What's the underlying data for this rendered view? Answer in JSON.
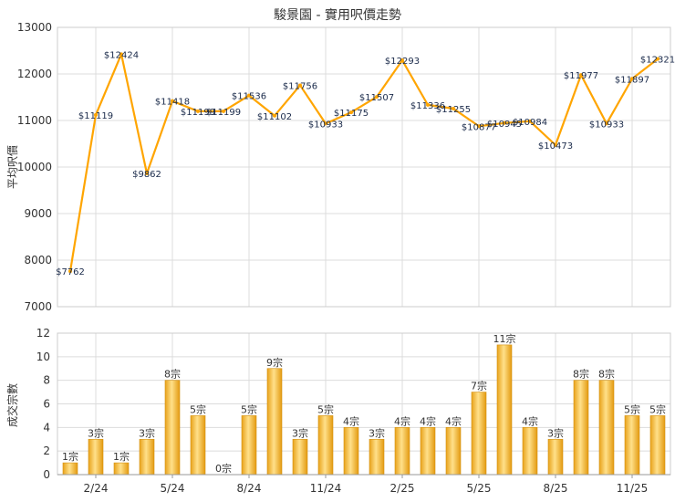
{
  "chart_data": [
    {
      "type": "line",
      "title": "駿景園 - 實用呎價走勢",
      "ylabel": "平均呎價",
      "ylim": [
        7000,
        13000
      ],
      "yticks": [
        7000,
        8000,
        9000,
        10000,
        11000,
        12000,
        13000
      ],
      "xticks": [
        "2/24",
        "5/24",
        "8/24",
        "11/24",
        "2/25",
        "5/25",
        "8/25",
        "11/25"
      ],
      "grid": true,
      "color": "#FFA500",
      "values": [
        7762,
        11119,
        12424,
        9862,
        11418,
        11199,
        11199,
        11536,
        11102,
        11756,
        10933,
        11175,
        11507,
        12293,
        11336,
        11255,
        10877,
        10945,
        10984,
        10473,
        11977,
        10933,
        11897,
        12321
      ],
      "labels": [
        "$7762",
        "$11119",
        "$12424",
        "$9862",
        "$11418",
        "$11199",
        "$11199",
        "$11536",
        "$11102",
        "$11756",
        "$10933",
        "$11175",
        "$11507",
        "$12293",
        "$11336",
        "$11255",
        "$10877",
        "$10945",
        "$10984",
        "$10473",
        "$11977",
        "$10933",
        "$11897",
        "$12321"
      ]
    },
    {
      "type": "bar",
      "ylabel": "成交宗數",
      "ylim": [
        0,
        12
      ],
      "yticks": [
        0,
        2,
        4,
        6,
        8,
        10,
        12
      ],
      "xticks": [
        "2/24",
        "5/24",
        "8/24",
        "11/24",
        "2/25",
        "5/25",
        "8/25",
        "11/25"
      ],
      "grid": true,
      "color": "#F5A623",
      "values": [
        1,
        3,
        1,
        3,
        8,
        5,
        0,
        5,
        9,
        3,
        5,
        4,
        3,
        4,
        4,
        4,
        7,
        11,
        4,
        3,
        8,
        8,
        5,
        5
      ],
      "labels": [
        "1宗",
        "3宗",
        "1宗",
        "3宗",
        "8宗",
        "5宗",
        "0宗",
        "5宗",
        "9宗",
        "3宗",
        "5宗",
        "4宗",
        "3宗",
        "4宗",
        "4宗",
        "4宗",
        "7宗",
        "11宗",
        "4宗",
        "3宗",
        "8宗",
        "8宗",
        "5宗",
        "5宗"
      ]
    }
  ]
}
